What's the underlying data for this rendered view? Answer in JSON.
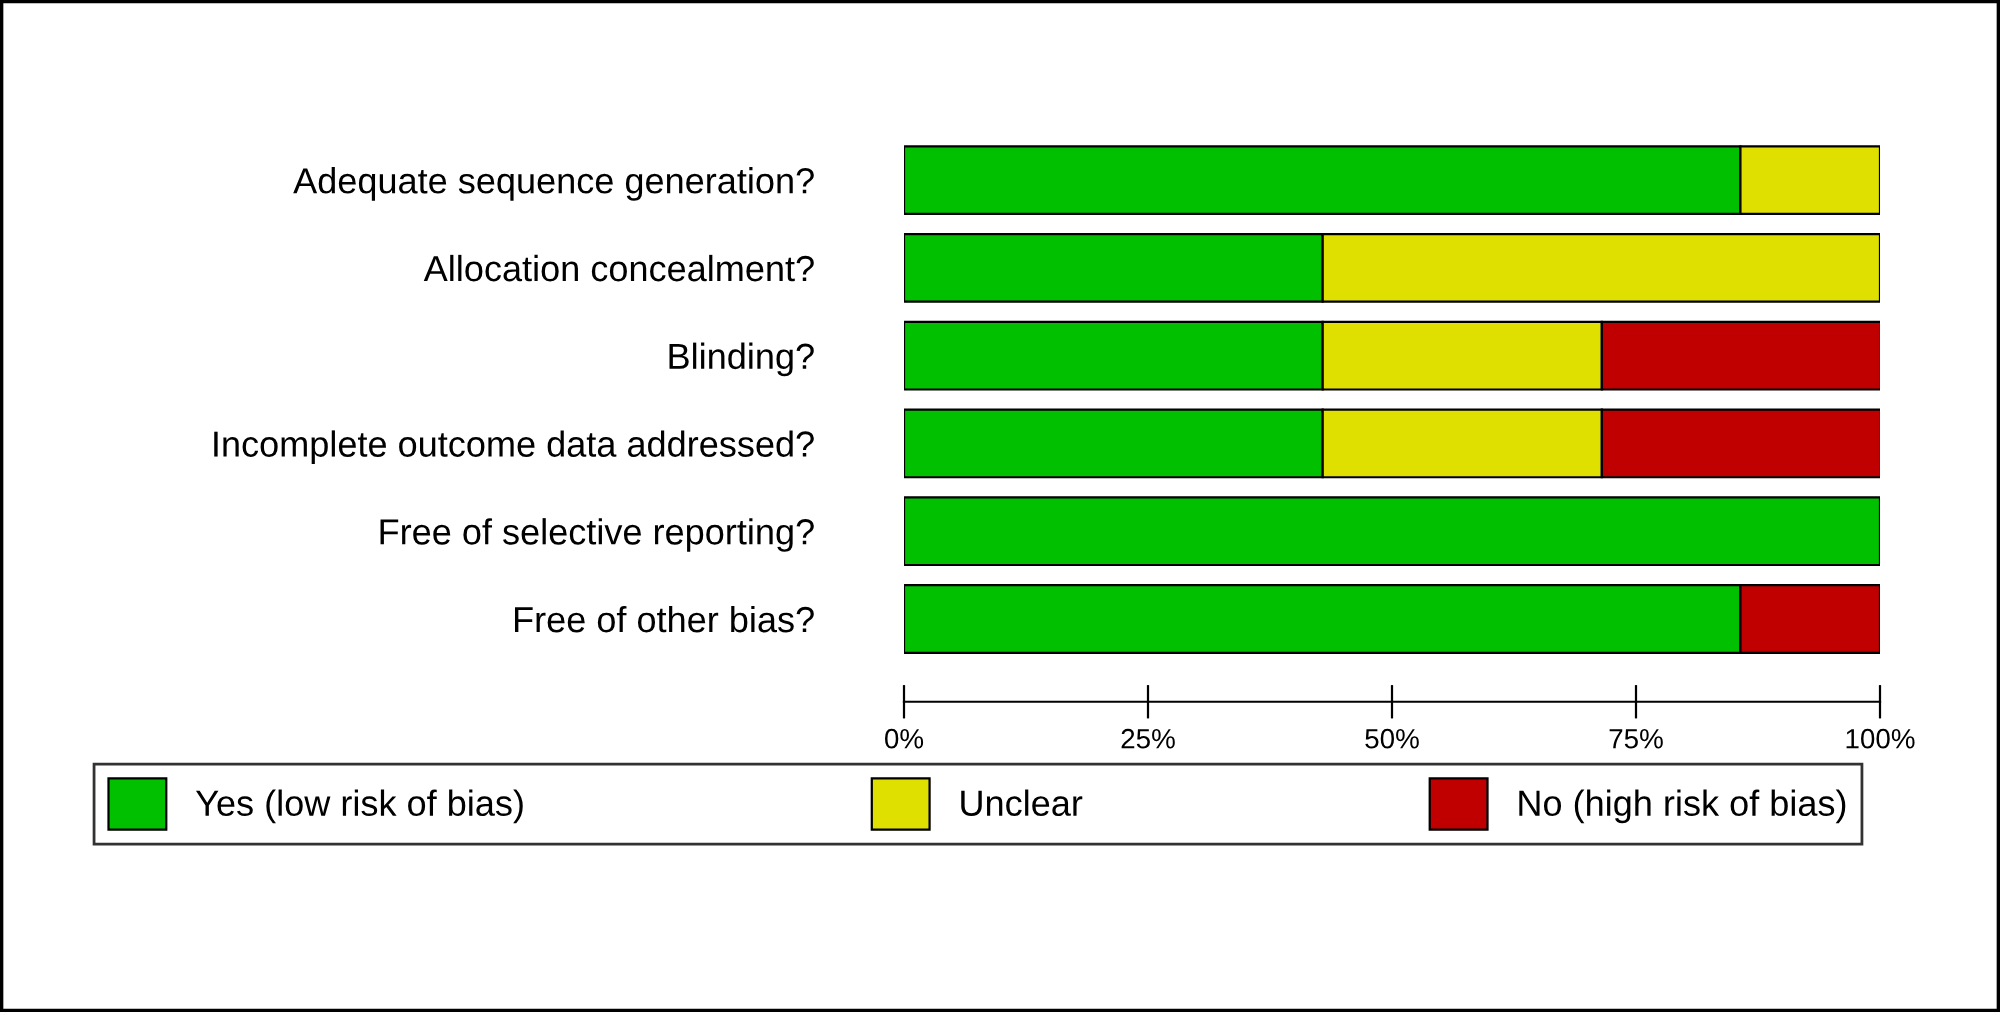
{
  "chart_data": {
    "type": "bar",
    "orientation": "horizontal",
    "stacked": true,
    "categories": [
      "Adequate sequence generation?",
      "Allocation concealment?",
      "Blinding?",
      "Incomplete outcome data addressed?",
      "Free of selective reporting?",
      "Free of other bias?"
    ],
    "series": [
      {
        "name": "Yes (low risk of bias)",
        "color": "#00c000",
        "values": [
          85.7,
          42.9,
          42.9,
          42.9,
          100,
          85.7
        ]
      },
      {
        "name": "Unclear",
        "color": "#e0e000",
        "values": [
          14.3,
          57.1,
          28.6,
          28.6,
          0,
          0
        ]
      },
      {
        "name": "No (high risk of bias)",
        "color": "#c00000",
        "values": [
          0,
          0,
          28.6,
          28.6,
          0,
          14.3
        ]
      }
    ],
    "xlim": [
      0,
      100
    ],
    "xticks": [
      {
        "value": 0,
        "label": "0%"
      },
      {
        "value": 25,
        "label": "25%"
      },
      {
        "value": 50,
        "label": "50%"
      },
      {
        "value": 75,
        "label": "75%"
      },
      {
        "value": 100,
        "label": "100%"
      }
    ],
    "grid": false,
    "legend": "bottom"
  }
}
